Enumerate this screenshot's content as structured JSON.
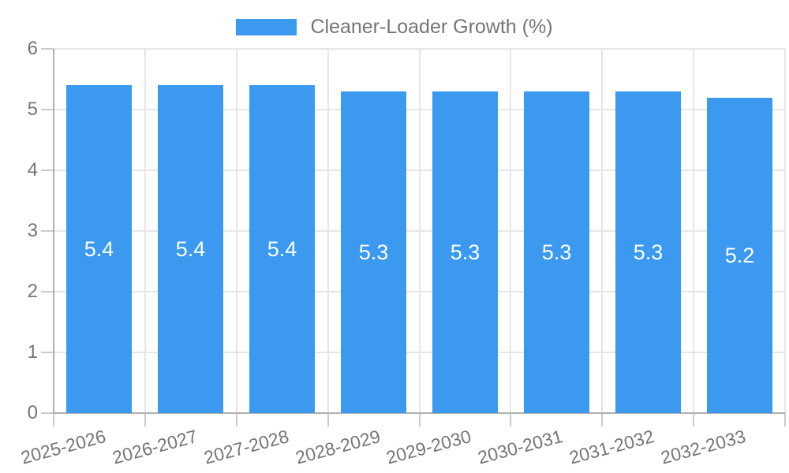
{
  "chart_data": {
    "type": "bar",
    "title": "Cleaner-Loader Growth (%)",
    "categories": [
      "2025-2026",
      "2026-2027",
      "2027-2028",
      "2028-2029",
      "2029-2030",
      "2030-2031",
      "2031-2032",
      "2032-2033"
    ],
    "series": [
      {
        "name": "Cleaner-Loader Growth (%)",
        "values": [
          5.4,
          5.4,
          5.4,
          5.3,
          5.3,
          5.3,
          5.3,
          5.2
        ]
      }
    ],
    "bar_labels": [
      "5.4",
      "5.4",
      "5.4",
      "5.3",
      "5.3",
      "5.3",
      "5.3",
      "5.2"
    ],
    "xlabel": "",
    "ylabel": "",
    "ylim": [
      0,
      6
    ],
    "yticks": [
      0,
      1,
      2,
      3,
      4,
      5,
      6
    ],
    "grid": true,
    "legend_position": "top"
  },
  "colors": {
    "bar": "#3b99ef",
    "bar_label": "#ffffff",
    "axis_line": "#b0b0b0",
    "gridline": "#e6e6e6",
    "tick": "#cccccc",
    "text": "#757575",
    "background": "#ffffff"
  }
}
